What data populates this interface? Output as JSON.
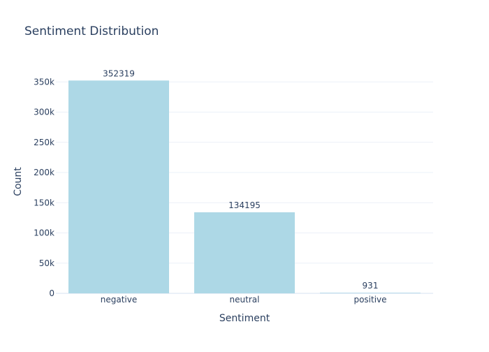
{
  "chart_data": {
    "type": "bar",
    "title": "Sentiment Distribution",
    "xlabel": "Sentiment",
    "ylabel": "Count",
    "categories": [
      "negative",
      "neutral",
      "positive"
    ],
    "values": [
      352319,
      134195,
      931
    ],
    "data_labels": [
      "352319",
      "134195",
      "931"
    ],
    "ylim": [
      0,
      370000
    ],
    "y_ticks": [
      0,
      50000,
      100000,
      150000,
      200000,
      250000,
      300000,
      350000
    ],
    "y_tick_labels": [
      "0",
      "50k",
      "100k",
      "150k",
      "200k",
      "250k",
      "300k",
      "350k"
    ],
    "grid": true,
    "bar_color": "#add8e6",
    "text_color": "#2a3f5f",
    "grid_color": "#ebf0f8"
  }
}
